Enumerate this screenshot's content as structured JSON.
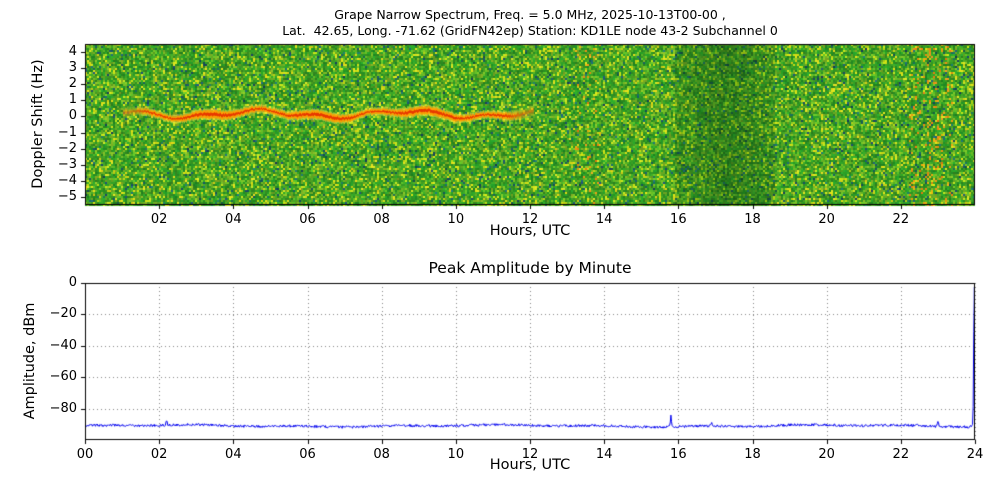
{
  "chart_data": [
    {
      "type": "heatmap",
      "name": "doppler-spectrogram",
      "title_lines": [
        "Grape Narrow Spectrum, Freq. = 5.0 MHz, 2025-10-13T00-00 ,",
        "Lat.  42.65, Long. -71.62 (GridFN42ep) Station: KD1LE node 43-2 Subchannel 0"
      ],
      "xlabel": "Hours, UTC",
      "ylabel": "Doppler Shift (Hz)",
      "xlim": [
        0,
        24
      ],
      "ylim": [
        -5.5,
        4.5
      ],
      "xticks": [
        2,
        4,
        6,
        8,
        10,
        12,
        14,
        16,
        18,
        20,
        22
      ],
      "yticks": [
        4,
        3,
        2,
        1,
        0,
        -1,
        -2,
        -3,
        -4,
        -5
      ],
      "colormap": "green-yellow speckle noise, red carrier trace near 0 Hz",
      "seed": 12345,
      "features": {
        "speck_color_hint": "dark teal specks",
        "carrier_trace": {
          "x_start": 1.0,
          "x_end": 12.1,
          "center_hz": 0.15,
          "wiggle_hz": 0.32,
          "core_color": "#e83800",
          "halo_color": "#ff9d00"
        },
        "dark_band": {
          "x_start": 15.9,
          "x_end": 18.6,
          "x_peak": 17.3,
          "strength": 0.45
        },
        "warm_bands": [
          {
            "x_start": 13.2,
            "x_end": 13.9,
            "strength": 0.22
          },
          {
            "x_start": 22.2,
            "x_end": 23.4,
            "strength": 0.45
          }
        ]
      }
    },
    {
      "type": "line",
      "name": "peak-amplitude",
      "title": "Peak Amplitude by Minute",
      "xlabel": "Hours, UTC",
      "ylabel": "Amplitude, dBm",
      "xlim": [
        0,
        24
      ],
      "ylim": [
        -100,
        0
      ],
      "xticks": [
        0,
        2,
        4,
        6,
        8,
        10,
        12,
        14,
        16,
        18,
        20,
        22,
        24
      ],
      "yticks": [
        0,
        -20,
        -40,
        -60,
        -80
      ],
      "grid": true,
      "line_color": "#0000ee",
      "baseline_dbm": -91,
      "noise_dbm": 0.8,
      "points_per_hour": 60,
      "spikes": [
        {
          "x": 2.2,
          "y": -87.5
        },
        {
          "x": 15.8,
          "y": -84.0
        },
        {
          "x": 16.9,
          "y": -88.0
        },
        {
          "x": 23.0,
          "y": -87.2
        },
        {
          "x": 23.98,
          "y": -0.5
        }
      ],
      "seed": 777
    }
  ]
}
